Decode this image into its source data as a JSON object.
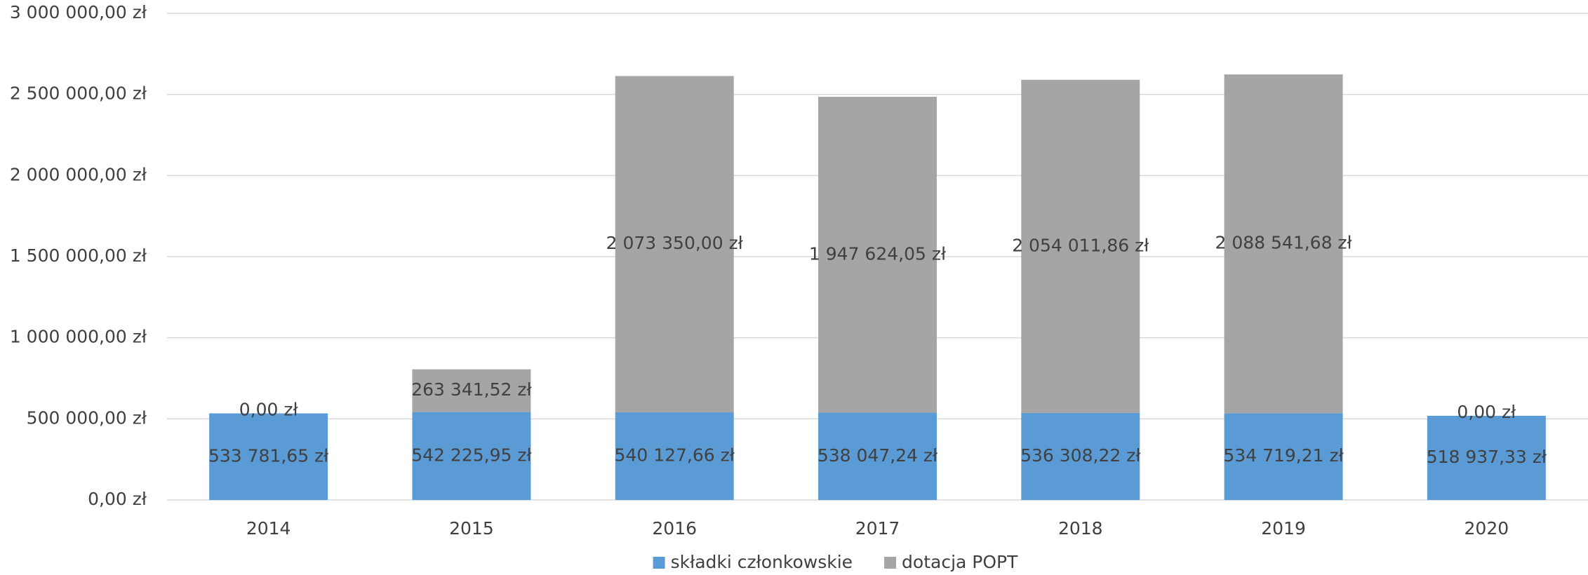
{
  "chart_data": {
    "type": "stacked_bar",
    "categories": [
      "2014",
      "2015",
      "2016",
      "2017",
      "2018",
      "2019",
      "2020"
    ],
    "series": [
      {
        "name": "składki członkowskie",
        "color": "#5b9bd5",
        "values": [
          533781.65,
          542225.95,
          540127.66,
          538047.24,
          536308.22,
          534719.21,
          518937.33
        ],
        "value_labels": [
          "533 781,65 zł",
          "542 225,95 zł",
          "540 127,66 zł",
          "538 047,24 zł",
          "536 308,22 zł",
          "534 719,21 zł",
          "518 937,33 zł"
        ]
      },
      {
        "name": "dotacja POPT",
        "color": "#a5a5a5",
        "values": [
          0,
          263341.52,
          2073350,
          1947624.05,
          2054011.86,
          2088541.68,
          0
        ],
        "value_labels": [
          "0,00 zł",
          "263 341,52 zł",
          "2 073 350,00 zł",
          "1 947 624,05 zł",
          "2 054 011,86 zł",
          "2 088 541,68 zł",
          "0,00 zł"
        ]
      }
    ],
    "ylim": [
      0,
      3000000
    ],
    "yticks": [
      {
        "value": 0,
        "label": "0,00 zł"
      },
      {
        "value": 500000,
        "label": "500 000,00 zł"
      },
      {
        "value": 1000000,
        "label": "1 000 000,00 zł"
      },
      {
        "value": 1500000,
        "label": "1 500 000,00 zł"
      },
      {
        "value": 2000000,
        "label": "2 000 000,00 zł"
      },
      {
        "value": 2500000,
        "label": "2 500 000,00 zł"
      },
      {
        "value": 3000000,
        "label": "3 000 000,00 zł"
      }
    ],
    "grid": true,
    "legend": "bottom"
  }
}
